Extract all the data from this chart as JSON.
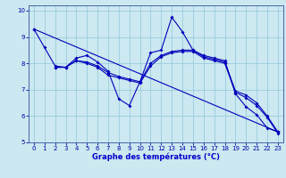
{
  "xlabel": "Graphe des températures (°C)",
  "bg_color": "#cce8f0",
  "grid_color": "#99ccdd",
  "line_color": "#0000bb",
  "xlim": [
    -0.5,
    23.5
  ],
  "ylim": [
    5,
    10.2
  ],
  "xticks": [
    0,
    1,
    2,
    3,
    4,
    5,
    6,
    7,
    8,
    9,
    10,
    11,
    12,
    13,
    14,
    15,
    16,
    17,
    18,
    19,
    20,
    21,
    22,
    23
  ],
  "yticks": [
    5,
    6,
    7,
    8,
    9,
    10
  ],
  "series": [
    {
      "x": [
        0,
        1,
        2,
        3,
        4,
        5,
        6,
        7,
        8,
        9,
        10,
        11,
        12,
        13,
        14,
        15,
        16,
        17,
        18,
        19,
        20,
        21,
        22,
        23
      ],
      "y": [
        9.3,
        8.6,
        7.9,
        7.85,
        8.2,
        8.3,
        8.05,
        7.7,
        6.65,
        6.4,
        7.3,
        8.4,
        8.5,
        9.75,
        9.2,
        8.5,
        8.3,
        8.2,
        8.1,
        6.85,
        6.35,
        6.05,
        5.55,
        5.4
      ]
    },
    {
      "x": [
        2,
        3,
        4,
        5,
        6,
        7,
        8,
        9,
        10,
        11,
        12,
        13,
        14,
        15,
        16,
        17,
        18,
        19,
        20,
        21,
        22,
        23
      ],
      "y": [
        7.85,
        7.85,
        8.1,
        8.05,
        7.9,
        7.65,
        7.5,
        7.4,
        7.3,
        8.0,
        8.3,
        8.45,
        8.5,
        8.5,
        8.25,
        8.15,
        8.05,
        6.95,
        6.8,
        6.5,
        6.0,
        5.4
      ]
    },
    {
      "comment": "straight diagonal: 0->9.3 to 23->5.4",
      "x": [
        0,
        23
      ],
      "y": [
        9.3,
        5.4
      ]
    },
    {
      "x": [
        2,
        3,
        4,
        5,
        6,
        7,
        8,
        9,
        10,
        11,
        12,
        13,
        14,
        15,
        16,
        17,
        18,
        19,
        20,
        21,
        22,
        23
      ],
      "y": [
        7.85,
        7.85,
        8.1,
        8.0,
        7.85,
        7.55,
        7.45,
        7.35,
        7.25,
        7.9,
        8.25,
        8.4,
        8.45,
        8.45,
        8.2,
        8.1,
        8.0,
        6.9,
        6.7,
        6.4,
        5.95,
        5.35
      ]
    }
  ]
}
